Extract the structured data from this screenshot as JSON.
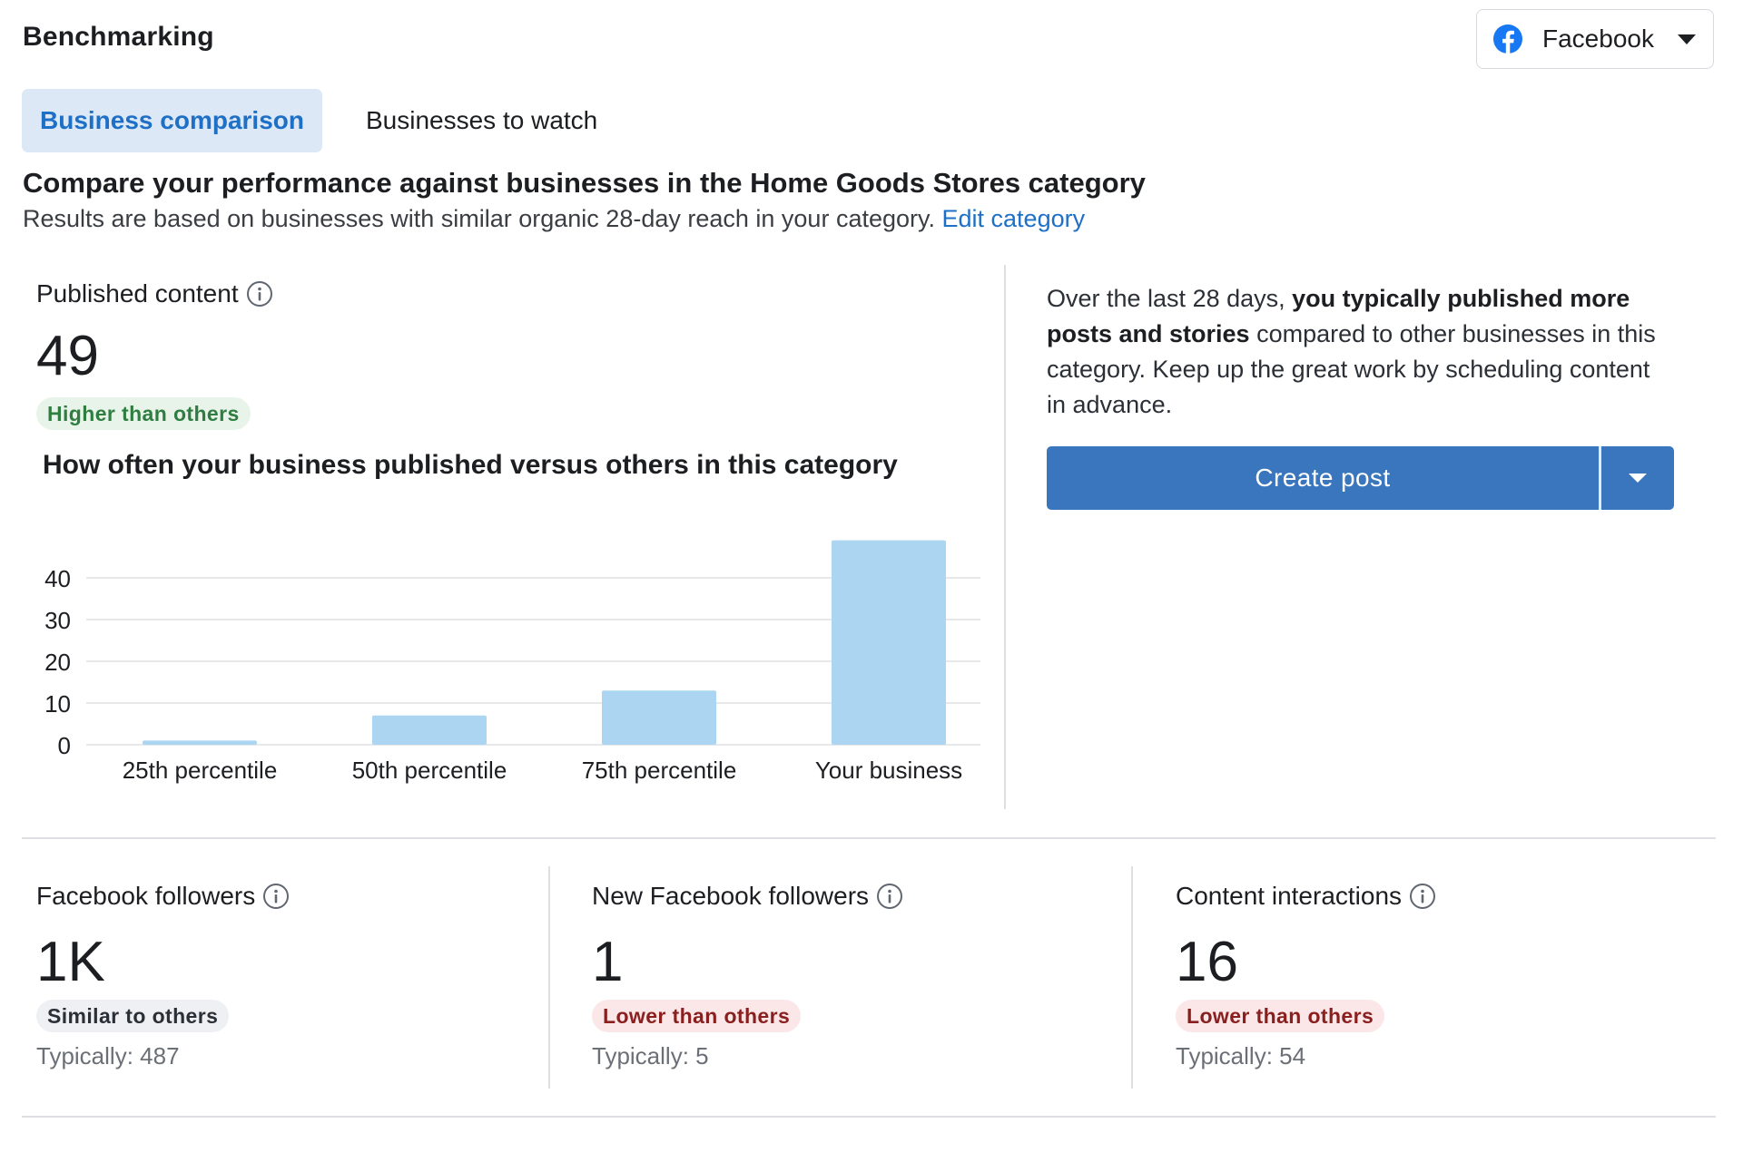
{
  "header": {
    "title": "Benchmarking"
  },
  "platform_dropdown": {
    "label": "Facebook",
    "icon": "facebook-icon"
  },
  "tabs": [
    {
      "label": "Business comparison",
      "active": true
    },
    {
      "label": "Businesses to watch",
      "active": false
    }
  ],
  "comparison": {
    "heading": "Compare your performance against businesses in the Home Goods Stores category",
    "subtext": "Results are based on businesses with similar organic 28-day reach in your category.",
    "edit_link": "Edit category"
  },
  "published_content": {
    "label": "Published content",
    "value": "49",
    "badge": "Higher than others",
    "chart_title": "How often your business published versus others in this category"
  },
  "chart_data": {
    "type": "bar",
    "categories": [
      "25th percentile",
      "50th percentile",
      "75th percentile",
      "Your business"
    ],
    "values": [
      1,
      7,
      13,
      49
    ],
    "yticks": [
      0,
      10,
      20,
      30,
      40
    ],
    "ylim": [
      0,
      49
    ],
    "grid": true,
    "bar_color": "#acd5f2"
  },
  "insight": {
    "prefix": "Over the last 28 days, ",
    "emphasis": "you typically published more posts and stories",
    "suffix": " compared to other businesses in this category. Keep up the great work by scheduling content in advance."
  },
  "create_post": {
    "label": "Create post"
  },
  "metrics": [
    {
      "label": "Facebook followers",
      "value": "1K",
      "badge": "Similar to others",
      "typical": "Typically: 487"
    },
    {
      "label": "New Facebook followers",
      "value": "1",
      "badge": "Lower than others",
      "typical": "Typically: 5"
    },
    {
      "label": "Content interactions",
      "value": "16",
      "badge": "Lower than others",
      "typical": "Typically: 54"
    }
  ],
  "colors": {
    "accent": "#1e6fc6",
    "button": "#3a76bd",
    "positive_badge": "#e8f3e9",
    "negative_badge": "#fbe7e7",
    "neutral_badge": "#eef0f4"
  }
}
